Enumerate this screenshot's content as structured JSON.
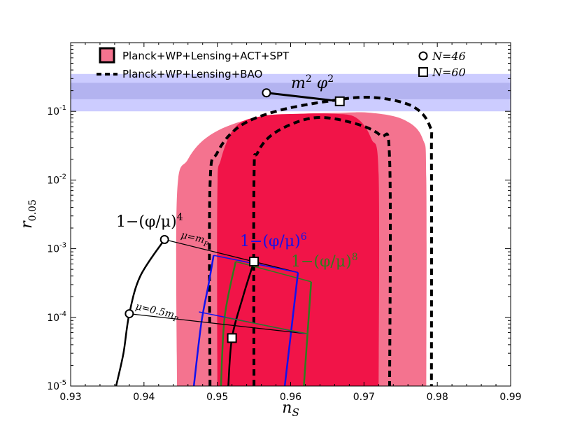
{
  "chart_data": {
    "type": "line",
    "xlabel": "n_S",
    "ylabel": "r_0.05",
    "xlim": [
      0.93,
      0.99
    ],
    "ylim": [
      1e-05,
      1
    ],
    "yscale": "log",
    "xticks": [
      "0.93",
      "0.94",
      "0.95",
      "0.96",
      "0.97",
      "0.98",
      "0.99"
    ],
    "yticks": [
      "10^-5",
      "10^-4",
      "10^-3",
      "10^-2",
      "10^-1"
    ],
    "legend": {
      "placement": "top-left",
      "entries": [
        "Planck+WP+Lensing+ACT+SPT",
        "Planck+WP+Lensing+BAO"
      ]
    },
    "legend2": {
      "placement": "top-right",
      "entries": [
        "N=46",
        "N=60"
      ]
    },
    "colors": {
      "outer_contour": "#f4738f",
      "inner_contour": "#f11448",
      "band_outer": "#ccccff",
      "band_inner": "#b3b3f0",
      "overlap": "#c8508e",
      "phi6": "#1111ee",
      "phi8": "#2e7d1e",
      "dashed": "#000000"
    },
    "band": {
      "outer": [
        0.1,
        0.35
      ],
      "inner": [
        0.15,
        0.26
      ]
    },
    "contours": {
      "outer_filled": [
        [
          0.9445,
          1e-05
        ],
        [
          0.9445,
          0.006
        ],
        [
          0.946,
          0.02
        ],
        [
          0.949,
          0.045
        ],
        [
          0.954,
          0.075
        ],
        [
          0.96,
          0.09
        ],
        [
          0.966,
          0.095
        ],
        [
          0.971,
          0.095
        ],
        [
          0.9755,
          0.075
        ],
        [
          0.978,
          0.04
        ],
        [
          0.9785,
          0.01
        ],
        [
          0.9785,
          1e-05
        ]
      ],
      "inner_filled": [
        [
          0.95,
          1e-05
        ],
        [
          0.95,
          0.006
        ],
        [
          0.9505,
          0.02
        ],
        [
          0.9525,
          0.06
        ],
        [
          0.956,
          0.085
        ],
        [
          0.961,
          0.092
        ],
        [
          0.966,
          0.092
        ],
        [
          0.969,
          0.08
        ],
        [
          0.971,
          0.04
        ],
        [
          0.972,
          0.012
        ],
        [
          0.972,
          1e-05
        ]
      ],
      "dashed_outer": [
        [
          0.949,
          1e-05
        ],
        [
          0.949,
          0.008
        ],
        [
          0.95,
          0.025
        ],
        [
          0.953,
          0.06
        ],
        [
          0.958,
          0.1
        ],
        [
          0.965,
          0.14
        ],
        [
          0.971,
          0.16
        ],
        [
          0.9765,
          0.12
        ],
        [
          0.979,
          0.06
        ],
        [
          0.9792,
          0.02
        ],
        [
          0.9792,
          1e-05
        ]
      ],
      "dashed_inner": [
        [
          0.955,
          1e-05
        ],
        [
          0.955,
          0.01
        ],
        [
          0.9555,
          0.025
        ],
        [
          0.958,
          0.05
        ],
        [
          0.963,
          0.08
        ],
        [
          0.968,
          0.07
        ],
        [
          0.9722,
          0.045
        ],
        [
          0.9735,
          0.02
        ],
        [
          0.9735,
          1e-05
        ]
      ]
    },
    "series": [
      {
        "name": "m^2 phi^2",
        "color": "#000000",
        "points": [
          [
            0.9567,
            0.186
          ],
          [
            0.9667,
            0.14
          ]
        ]
      },
      {
        "name": "1-(phi/mu)^4",
        "color": "#000000",
        "points": [
          [
            0.9362,
            1e-05
          ],
          [
            0.9372,
            3e-05
          ],
          [
            0.938,
            0.000113
          ],
          [
            0.9395,
            0.0004
          ],
          [
            0.9428,
            0.00136
          ]
        ]
      },
      {
        "name": "1-(phi/mu)^6",
        "color": "#1111ee",
        "points": [
          [
            0.9468,
            1e-05
          ],
          [
            0.9478,
            8e-05
          ],
          [
            0.9488,
            0.0003
          ],
          [
            0.9495,
            0.0008
          ]
        ]
      },
      {
        "name": "1-(phi/mu)^8",
        "color": "#2e7d1e",
        "points": [
          [
            0.9505,
            1e-05
          ],
          [
            0.951,
            0.0001
          ],
          [
            0.9525,
            0.00065
          ]
        ]
      },
      {
        "name": "N=60 black",
        "color": "#000000",
        "points": [
          [
            0.9515,
            1e-05
          ],
          [
            0.952,
            5e-05
          ],
          [
            0.9535,
            0.0002
          ],
          [
            0.955,
            0.00065
          ]
        ]
      }
    ],
    "markers": {
      "n46": [
        [
          0.9567,
          0.186
        ],
        [
          0.9428,
          0.00136
        ],
        [
          0.938,
          0.000113
        ]
      ],
      "n60": [
        [
          0.9667,
          0.14
        ],
        [
          0.955,
          0.00065
        ],
        [
          0.952,
          5e-05
        ]
      ]
    },
    "annotations": [
      "m^2 phi^2",
      "1-(phi/mu)^4",
      "1-(phi/mu)^6",
      "1-(phi/mu)^8",
      "mu=m_P",
      "mu=0.5m_P"
    ]
  }
}
